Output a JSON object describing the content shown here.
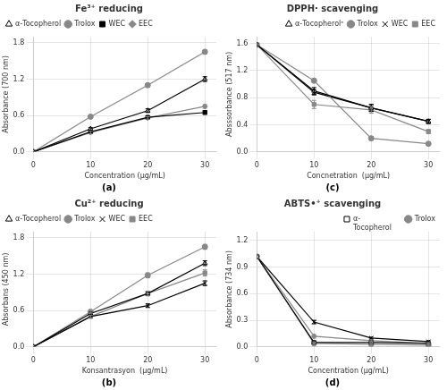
{
  "chart_data": [
    {
      "type": "line",
      "title": "Fe³⁺ reducing",
      "x_label": "Concentration (μg/mL)",
      "y_label": "Absorbance (700 nm)",
      "annotations": [
        "(a)"
      ],
      "xlim": [
        0,
        32
      ],
      "xticks": [
        0,
        10,
        20,
        30
      ],
      "ylim": [
        0,
        1.9
      ],
      "yticks": [
        {
          "value": 0,
          "label": "0.0"
        },
        0.6,
        1.2,
        1.8
      ],
      "grid": true,
      "legend": "upper left",
      "x": [
        0,
        10,
        20,
        30
      ],
      "series": [
        {
          "name": "α-Tocopherol",
          "color": "#000000",
          "marker": "triangle-open",
          "line_style": "solid",
          "values": [
            0,
            0.38,
            0.68,
            1.2
          ],
          "yerr": [
            0,
            0.02,
            0.03,
            0.04
          ]
        },
        {
          "name": "Trolox",
          "color": "#888888",
          "marker": "circle",
          "line_style": "solid",
          "values": [
            0,
            0.58,
            1.1,
            1.65
          ],
          "yerr": [
            0,
            0.02,
            0.03,
            0.03
          ]
        },
        {
          "name": "WEC",
          "color": "#000000",
          "marker": "square",
          "line_style": "solid",
          "values": [
            0,
            0.33,
            0.57,
            0.65
          ],
          "yerr": [
            0,
            0.02,
            0.02,
            0.03
          ]
        },
        {
          "name": "EEC",
          "color": "#888888",
          "marker": "diamond",
          "line_style": "solid",
          "values": [
            0,
            0.32,
            0.56,
            0.75
          ],
          "yerr": [
            0,
            0.02,
            0.02,
            0.03
          ]
        }
      ]
    },
    {
      "type": "line",
      "title": "Cu²⁺ reducing",
      "x_label": "Konsantrasyon  (μg/mL)",
      "y_label": "Absorbans (450 nm)",
      "annotations": [
        "(b)"
      ],
      "xlim": [
        0,
        32
      ],
      "xticks": [
        0,
        10,
        20,
        30
      ],
      "ylim": [
        0,
        1.9
      ],
      "yticks": [
        {
          "value": 0,
          "label": "0.0"
        },
        0.6,
        1.2,
        1.8
      ],
      "grid": true,
      "legend": "upper left",
      "x": [
        0,
        10,
        20,
        30
      ],
      "series": [
        {
          "name": "α-Tocopherol",
          "color": "#000000",
          "marker": "triangle-open",
          "line_style": "solid",
          "values": [
            0,
            0.55,
            0.88,
            1.38
          ],
          "yerr": [
            0,
            0.02,
            0.03,
            0.04
          ]
        },
        {
          "name": "Trolox",
          "color": "#888888",
          "marker": "circle",
          "line_style": "solid",
          "values": [
            0,
            0.58,
            1.18,
            1.65
          ],
          "yerr": [
            0,
            0.02,
            0.04,
            0.04
          ]
        },
        {
          "name": "WEC",
          "color": "#000000",
          "marker": "x",
          "line_style": "solid",
          "values": [
            0,
            0.5,
            0.68,
            1.05
          ],
          "yerr": [
            0,
            0.02,
            0.03,
            0.04
          ]
        },
        {
          "name": "EEC",
          "color": "#888888",
          "marker": "square",
          "line_style": "solid",
          "values": [
            0,
            0.5,
            0.88,
            1.22
          ],
          "yerr": [
            0,
            0.02,
            0.04,
            0.05
          ]
        }
      ]
    },
    {
      "type": "line",
      "title": "DPPH· scavenging",
      "x_label": "Concnetration  (μg/mL)",
      "y_label": "Absssorbance (517 nm)",
      "annotations": [
        "(c)"
      ],
      "xlim": [
        0,
        32
      ],
      "xticks": [
        0,
        10,
        20,
        30
      ],
      "ylim": [
        0,
        1.7
      ],
      "yticks": [
        {
          "value": 0,
          "label": "0.0"
        },
        0.4,
        0.8,
        1.2,
        1.6
      ],
      "grid": true,
      "legend": "upper right",
      "x": [
        0,
        10,
        20,
        30
      ],
      "series": [
        {
          "name": "α-Tocopherolⁿ",
          "color": "#000000",
          "marker": "triangle-open",
          "line_style": "solid",
          "values": [
            1.58,
            0.9,
            0.65,
            0.45
          ],
          "yerr": [
            0.01,
            0.05,
            0.05,
            0.03
          ]
        },
        {
          "name": "Trolox",
          "color": "#888888",
          "marker": "circle",
          "line_style": "solid",
          "values": [
            1.58,
            1.05,
            0.2,
            0.12
          ],
          "yerr": [
            0.01,
            0.03,
            0.02,
            0.01
          ]
        },
        {
          "name": "WEC",
          "color": "#000000",
          "marker": "x",
          "line_style": "solid",
          "values": [
            1.58,
            0.88,
            0.65,
            0.45
          ],
          "yerr": [
            0.01,
            0.04,
            0.05,
            0.03
          ]
        },
        {
          "name": "EEC",
          "color": "#888888",
          "marker": "square",
          "line_style": "solid",
          "values": [
            1.58,
            0.7,
            0.62,
            0.3
          ],
          "yerr": [
            0.01,
            0.06,
            0.05,
            0.03
          ]
        }
      ]
    },
    {
      "type": "line",
      "title": "ABTS•⁺ scavenging",
      "x_label": "Concentration (μg/mL)",
      "y_label": "Absorbance (734 nm)",
      "annotations": [
        "(d)"
      ],
      "xlim": [
        0,
        32
      ],
      "xticks": [
        0,
        10,
        20,
        30
      ],
      "ylim": [
        0,
        1.3
      ],
      "yticks": [
        {
          "value": 0,
          "label": "0.0"
        },
        0.3,
        0.6,
        0.9,
        1.2
      ],
      "grid": true,
      "legend": "upper right",
      "x": [
        0,
        10,
        20,
        30
      ],
      "series": [
        {
          "name": "α-\nTocopherol",
          "color": "#000000",
          "marker": "square-open",
          "line_style": "solid",
          "values": [
            1.02,
            0.05,
            0.05,
            0.04
          ],
          "yerr": [
            0.02,
            0.01,
            0.01,
            0.01
          ]
        },
        {
          "name": "Trolox",
          "color": "#888888",
          "marker": "circle",
          "line_style": "solid",
          "values": [
            1.02,
            0.04,
            0.03,
            0.02
          ],
          "yerr": [
            0.02,
            0.01,
            0.01,
            0.01
          ]
        },
        {
          "color": "#000000",
          "marker": "x",
          "line_style": "solid",
          "values": [
            1.02,
            0.28,
            0.1,
            0.06
          ],
          "yerr": [
            0.02,
            0.02,
            0.01,
            0.01
          ]
        },
        {
          "color": "#888888",
          "marker": "diamond",
          "line_style": "solid",
          "values": [
            1.02,
            0.12,
            0.07,
            0.04
          ],
          "yerr": [
            0.02,
            0.02,
            0.01,
            0.01
          ]
        }
      ]
    }
  ]
}
